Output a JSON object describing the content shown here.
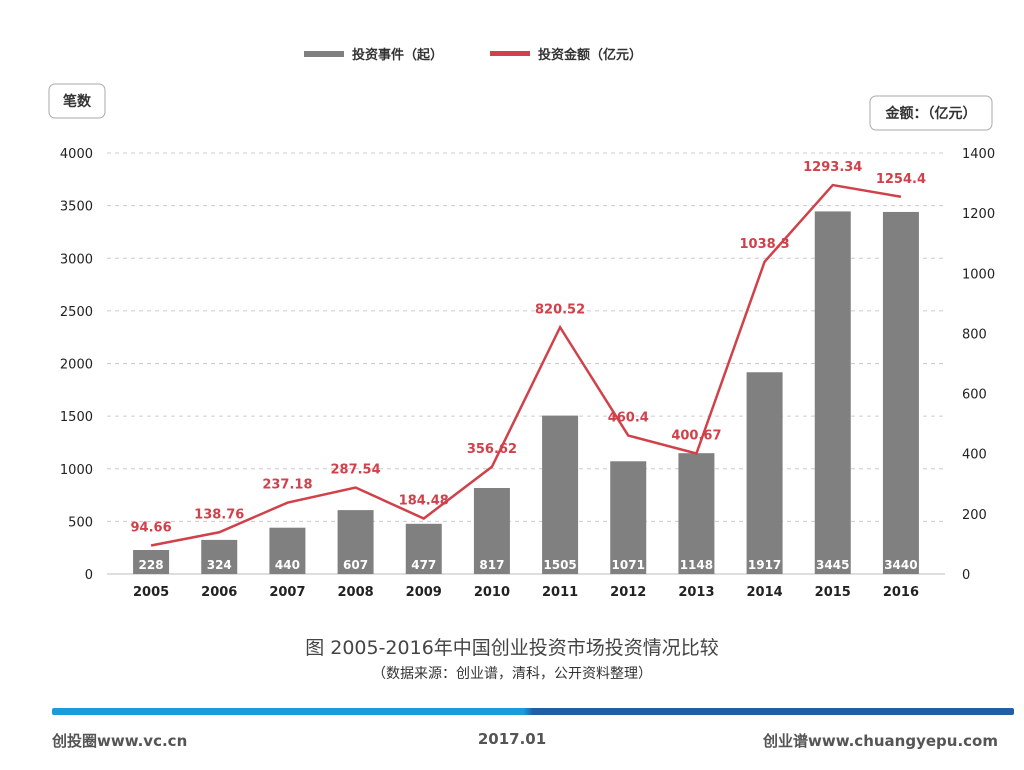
{
  "chart_data": {
    "type": "bar",
    "title": "图 2005-2016年中国创业投资市场投资情况比较",
    "subtitle": "（数据来源：创业谱，清科，公开资料整理）",
    "categories": [
      "2005",
      "2006",
      "2007",
      "2008",
      "2009",
      "2010",
      "2011",
      "2012",
      "2013",
      "2014",
      "2015",
      "2016"
    ],
    "series": [
      {
        "name": "投资事件（起）",
        "type": "bar",
        "axis": "left",
        "values": [
          228,
          324,
          440,
          607,
          477,
          817,
          1505,
          1071,
          1148,
          1917,
          3445,
          3440
        ],
        "color": "#808080"
      },
      {
        "name": "投资金额（亿元）",
        "type": "line",
        "axis": "right",
        "values": [
          94.66,
          138.76,
          237.18,
          287.54,
          184.48,
          356.62,
          820.52,
          460.4,
          400.67,
          1038.3,
          1293.34,
          1254.4
        ],
        "color": "#d0414a"
      }
    ],
    "left_axis": {
      "label": "笔数",
      "ylim": [
        0,
        4000
      ],
      "ticks": [
        0,
        500,
        1000,
        1500,
        2000,
        2500,
        3000,
        3500,
        4000
      ]
    },
    "right_axis": {
      "label": "金额：（亿元）",
      "ylim": [
        0,
        1400
      ],
      "ticks": [
        0,
        200,
        400,
        600,
        800,
        1000,
        1200,
        1400
      ]
    },
    "grid": true,
    "legend_position": "top-center"
  },
  "footer": {
    "left": "创投圈www.vc.cn",
    "center": "2017.01",
    "right": "创业谱www.chuangyepu.com"
  }
}
